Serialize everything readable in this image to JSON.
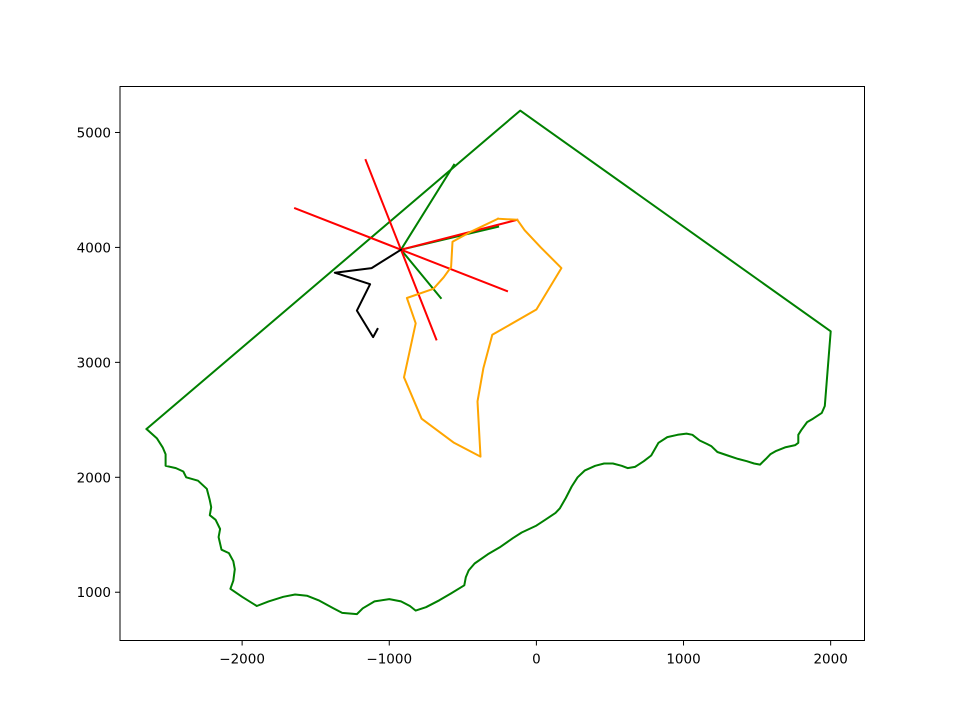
{
  "chart_data": {
    "type": "line",
    "title": "",
    "xlabel": "",
    "ylabel": "",
    "xlim": [
      -2830,
      2230
    ],
    "ylim": [
      580,
      5400
    ],
    "xticks": [
      -2000,
      -1000,
      0,
      1000,
      2000
    ],
    "yticks": [
      1000,
      2000,
      3000,
      4000,
      5000
    ],
    "xtick_labels": [
      "−2000",
      "−1000",
      "0",
      "1000",
      "2000"
    ],
    "ytick_labels": [
      "1000",
      "2000",
      "3000",
      "4000",
      "5000"
    ],
    "grid": false,
    "legend": "none",
    "series": [
      {
        "color": "#008000",
        "points": [
          [
            -2650,
            2420
          ],
          [
            -2580,
            2340
          ],
          [
            -2540,
            2260
          ],
          [
            -2520,
            2200
          ],
          [
            -2520,
            2100
          ],
          [
            -2450,
            2080
          ],
          [
            -2400,
            2050
          ],
          [
            -2380,
            2000
          ],
          [
            -2300,
            1970
          ],
          [
            -2240,
            1900
          ],
          [
            -2220,
            1800
          ],
          [
            -2210,
            1740
          ],
          [
            -2220,
            1670
          ],
          [
            -2180,
            1630
          ],
          [
            -2150,
            1550
          ],
          [
            -2160,
            1480
          ],
          [
            -2140,
            1370
          ],
          [
            -2090,
            1340
          ],
          [
            -2060,
            1270
          ],
          [
            -2050,
            1200
          ],
          [
            -2060,
            1100
          ],
          [
            -2080,
            1030
          ],
          [
            -2000,
            960
          ],
          [
            -1900,
            880
          ],
          [
            -1820,
            920
          ],
          [
            -1720,
            960
          ],
          [
            -1640,
            980
          ],
          [
            -1560,
            970
          ],
          [
            -1480,
            930
          ],
          [
            -1380,
            860
          ],
          [
            -1320,
            820
          ],
          [
            -1220,
            810
          ],
          [
            -1180,
            860
          ],
          [
            -1100,
            920
          ],
          [
            -1000,
            940
          ],
          [
            -920,
            920
          ],
          [
            -860,
            880
          ],
          [
            -820,
            840
          ],
          [
            -750,
            870
          ],
          [
            -660,
            930
          ],
          [
            -580,
            990
          ],
          [
            -490,
            1060
          ],
          [
            -480,
            1130
          ],
          [
            -460,
            1190
          ],
          [
            -420,
            1250
          ],
          [
            -330,
            1330
          ],
          [
            -250,
            1390
          ],
          [
            -160,
            1470
          ],
          [
            -100,
            1520
          ],
          [
            0,
            1580
          ],
          [
            60,
            1630
          ],
          [
            130,
            1690
          ],
          [
            160,
            1730
          ],
          [
            200,
            1820
          ],
          [
            240,
            1920
          ],
          [
            280,
            2000
          ],
          [
            330,
            2060
          ],
          [
            400,
            2100
          ],
          [
            460,
            2120
          ],
          [
            520,
            2120
          ],
          [
            580,
            2100
          ],
          [
            620,
            2080
          ],
          [
            670,
            2090
          ],
          [
            730,
            2140
          ],
          [
            780,
            2190
          ],
          [
            830,
            2300
          ],
          [
            890,
            2350
          ],
          [
            960,
            2370
          ],
          [
            1020,
            2380
          ],
          [
            1060,
            2370
          ],
          [
            1110,
            2320
          ],
          [
            1160,
            2290
          ],
          [
            1190,
            2270
          ],
          [
            1230,
            2220
          ],
          [
            1300,
            2190
          ],
          [
            1370,
            2160
          ],
          [
            1430,
            2140
          ],
          [
            1480,
            2120
          ],
          [
            1520,
            2110
          ],
          [
            1560,
            2160
          ],
          [
            1590,
            2200
          ],
          [
            1630,
            2230
          ],
          [
            1690,
            2260
          ],
          [
            1760,
            2280
          ],
          [
            1780,
            2300
          ],
          [
            1780,
            2370
          ],
          [
            1800,
            2410
          ],
          [
            1840,
            2480
          ],
          [
            1880,
            2510
          ],
          [
            1940,
            2560
          ],
          [
            1960,
            2620
          ],
          [
            2000,
            3270
          ],
          [
            -110,
            5190
          ],
          [
            -2650,
            2420
          ]
        ]
      },
      {
        "color": "#008000",
        "points": [
          [
            -560,
            4720
          ],
          [
            -920,
            3980
          ],
          [
            -650,
            3560
          ]
        ]
      },
      {
        "color": "#008000",
        "points": [
          [
            -920,
            3980
          ],
          [
            -260,
            4180
          ]
        ]
      },
      {
        "color": "#ff0000",
        "points": [
          [
            -1160,
            4760
          ],
          [
            -680,
            3200
          ]
        ]
      },
      {
        "color": "#ff0000",
        "points": [
          [
            -1640,
            4340
          ],
          [
            -200,
            3620
          ]
        ]
      },
      {
        "color": "#ff0000",
        "points": [
          [
            -920,
            3980
          ],
          [
            -130,
            4240
          ]
        ]
      },
      {
        "color": "#ffa500",
        "points": [
          [
            -260,
            4250
          ],
          [
            -130,
            4240
          ],
          [
            -80,
            4150
          ],
          [
            30,
            4000
          ],
          [
            170,
            3820
          ],
          [
            0,
            3460
          ],
          [
            -300,
            3240
          ],
          [
            -360,
            2950
          ],
          [
            -400,
            2660
          ],
          [
            -380,
            2180
          ],
          [
            -560,
            2300
          ],
          [
            -780,
            2510
          ],
          [
            -900,
            2870
          ],
          [
            -820,
            3340
          ],
          [
            -880,
            3560
          ],
          [
            -700,
            3640
          ],
          [
            -630,
            3740
          ],
          [
            -580,
            3830
          ],
          [
            -570,
            4050
          ],
          [
            -440,
            4140
          ],
          [
            -260,
            4250
          ]
        ]
      },
      {
        "color": "#000000",
        "points": [
          [
            -920,
            3980
          ],
          [
            -1120,
            3820
          ],
          [
            -1370,
            3780
          ],
          [
            -1130,
            3680
          ],
          [
            -1220,
            3450
          ],
          [
            -1110,
            3220
          ],
          [
            -1080,
            3290
          ]
        ]
      }
    ]
  }
}
